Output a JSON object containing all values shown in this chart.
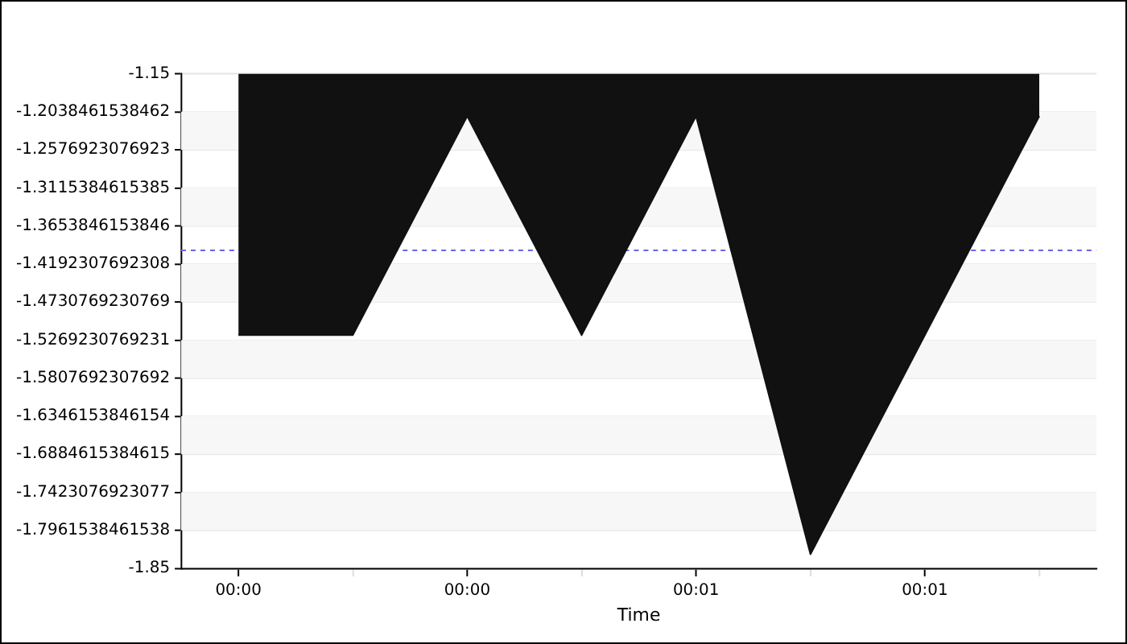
{
  "chart_data": {
    "type": "area",
    "xlabel": "Time",
    "categories": [
      "00:00",
      null,
      "00:00",
      null,
      "00:01",
      null,
      "00:01",
      null
    ],
    "series": [
      {
        "color": "#111111",
        "values": [
          -1.52,
          -1.52,
          -1.21,
          -1.52,
          -1.21,
          -1.83,
          -1.52,
          -1.21
        ]
      }
    ],
    "ylim": [
      -1.85,
      -1.15
    ],
    "yticks": [
      -1.15,
      -1.2038461538462,
      -1.2576923076923,
      -1.3115384615385,
      -1.3653846153846,
      -1.4192307692308,
      -1.4730769230769,
      -1.5269230769231,
      -1.5807692307692,
      -1.6346153846154,
      -1.6884615384615,
      -1.7423076923077,
      -1.7961538461538,
      -1.85
    ],
    "ref_lines": [
      {
        "axis": "y",
        "value": -1.4,
        "color": "#6666ee",
        "line_style": "dashed"
      }
    ],
    "grid": "y",
    "legend": false,
    "marker": "none"
  }
}
